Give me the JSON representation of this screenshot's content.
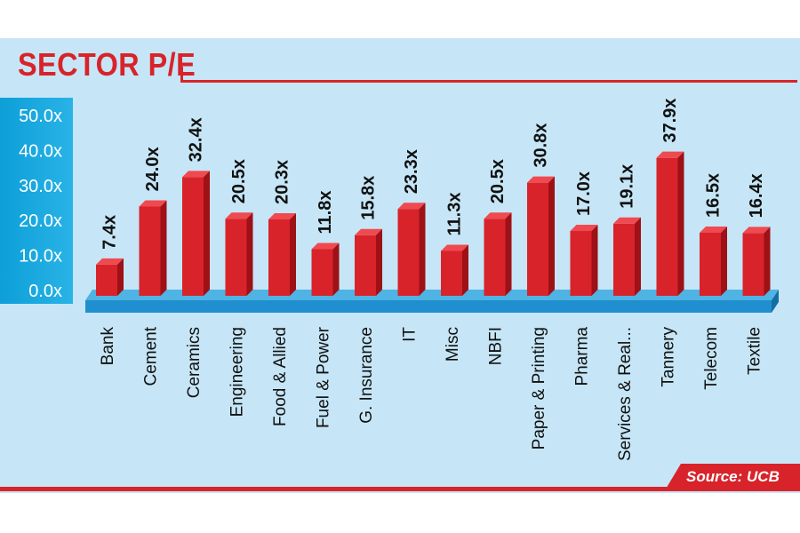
{
  "chart_data": {
    "type": "bar",
    "title": "SECTOR P/E",
    "categories": [
      "Bank",
      "Cement",
      "Ceramics",
      "Engineering",
      "Food & Allied",
      "Fuel & Power",
      "G. Insurance",
      "IT",
      "Misc",
      "NBFI",
      "Paper & Printing",
      "Pharma",
      "Services & Real...",
      "Tannery",
      "Telecom",
      "Textile"
    ],
    "values": [
      7.4,
      24.0,
      32.4,
      20.5,
      20.3,
      11.8,
      15.8,
      23.3,
      11.3,
      20.5,
      30.8,
      17.0,
      19.1,
      37.9,
      16.5,
      16.4
    ],
    "data_labels": [
      "7.4x",
      "24.0x",
      "32.4x",
      "20.5x",
      "20.3x",
      "11.8x",
      "15.8x",
      "23.3x",
      "11.3x",
      "20.5x",
      "30.8x",
      "17.0x",
      "19.1x",
      "37.9x",
      "16.5x",
      "16.4x"
    ],
    "yticks": [
      "0.0x",
      "10.0x",
      "20.0x",
      "30.0x",
      "40.0x",
      "50.0x"
    ],
    "ylim": [
      0,
      50
    ],
    "xlabel": "",
    "ylabel": "",
    "grid": false,
    "colors": {
      "bar": "#d8232a",
      "bar_side": "#9e1116",
      "bar_top": "#ef4a50",
      "base": "#1f8fcf",
      "base_side": "#156ea3",
      "axis_strip": "#0d9fd8",
      "panel": "#c6e6f7",
      "accent": "#d8232a"
    }
  },
  "source": "Source: UCB"
}
